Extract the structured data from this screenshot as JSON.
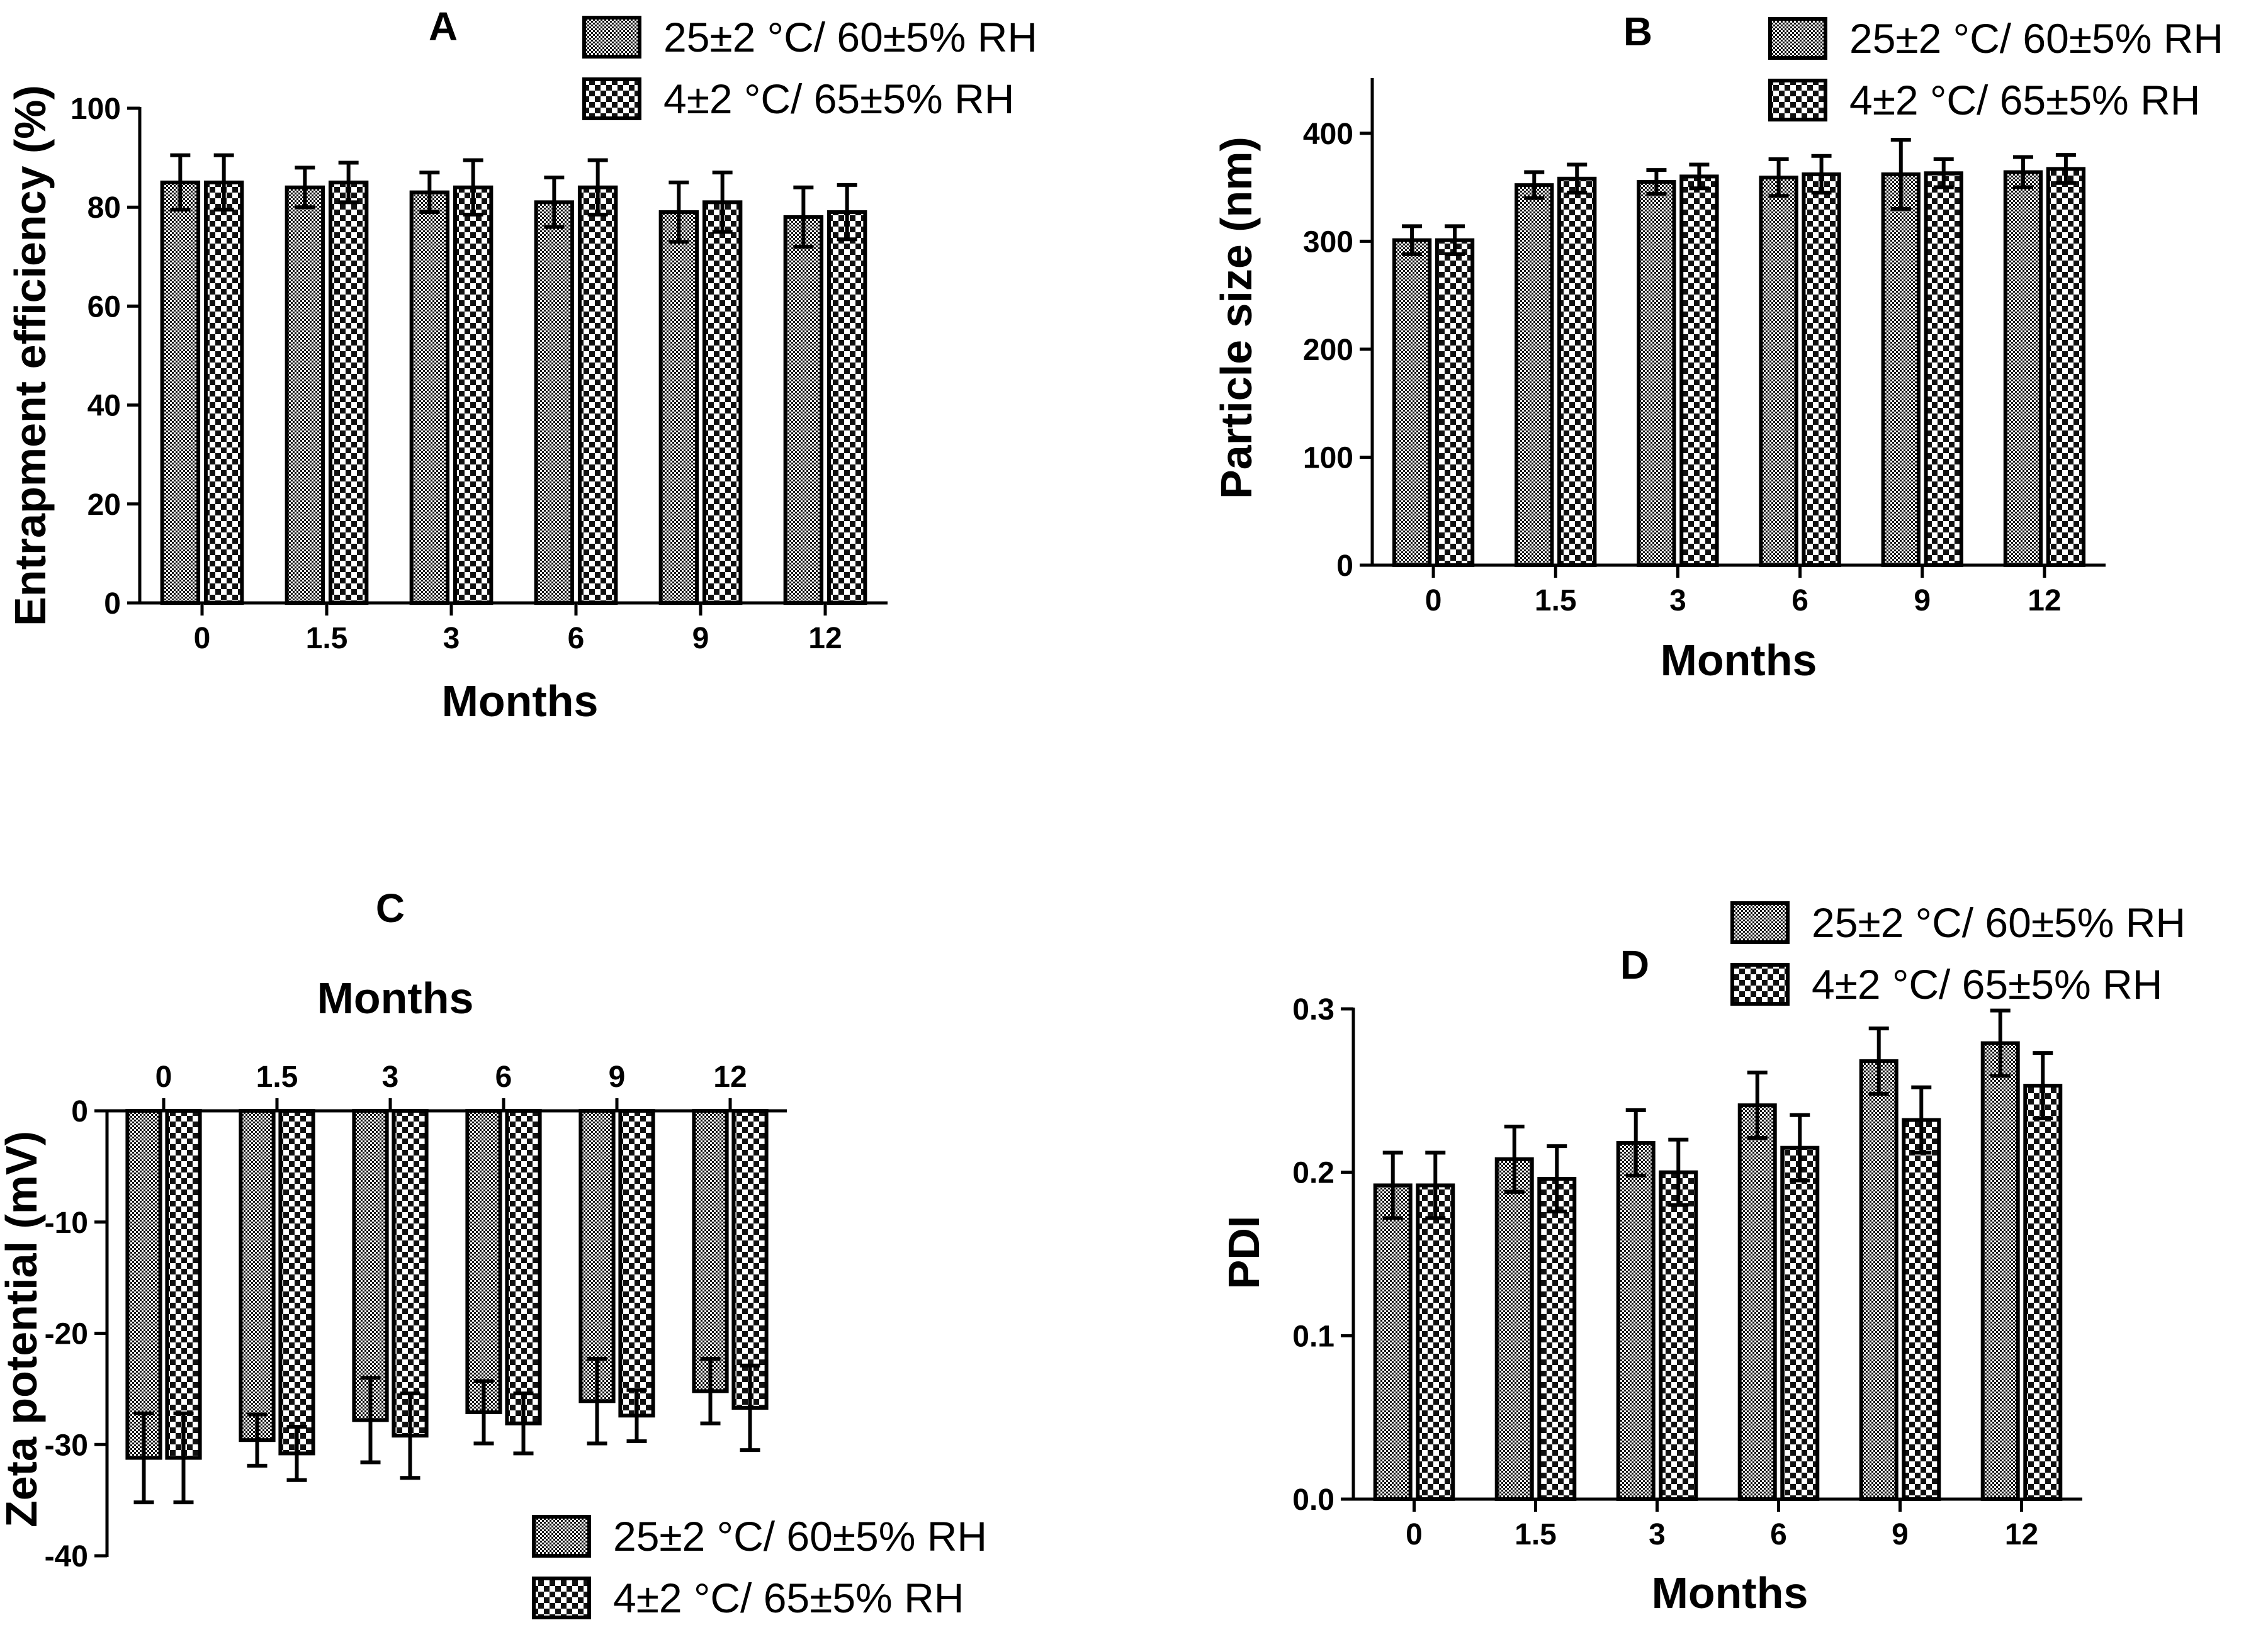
{
  "legend": {
    "series_a": "25±2 °C/ 60±5% RH",
    "series_b": "4±2 °C/ 65±5% RH"
  },
  "chart_data": [
    {
      "panel": "A",
      "type": "bar",
      "title": "A",
      "xlabel": "Months",
      "ylabel": "Entrapment efficiency (%)",
      "categories": [
        "0",
        "1.5",
        "3",
        "6",
        "9",
        "12"
      ],
      "ylim": [
        0,
        100
      ],
      "yticks": [
        0,
        20,
        40,
        60,
        80,
        100
      ],
      "series": [
        {
          "name": "25±2 °C/ 60±5% RH",
          "values": [
            85,
            84,
            83,
            81,
            79,
            78
          ],
          "errors": [
            5.5,
            4,
            4,
            5,
            6,
            6
          ]
        },
        {
          "name": "4±2 °C/ 65±5% RH",
          "values": [
            85,
            85,
            84,
            84,
            81,
            79
          ],
          "errors": [
            5.5,
            4,
            5.5,
            5.5,
            6,
            5.5
          ]
        }
      ],
      "legend_position": "top-right"
    },
    {
      "panel": "B",
      "type": "bar",
      "title": "B",
      "xlabel": "Months",
      "ylabel": "Particle size (nm)",
      "categories": [
        "0",
        "1.5",
        "3",
        "6",
        "9",
        "12"
      ],
      "ylim": [
        0,
        450
      ],
      "yticks": [
        0,
        100,
        200,
        300,
        400
      ],
      "series": [
        {
          "name": "25±2 °C/ 60±5% RH",
          "values": [
            301,
            352,
            355,
            359,
            362,
            364
          ],
          "errors": [
            13,
            12,
            11,
            17,
            32,
            14
          ]
        },
        {
          "name": "4±2 °C/ 65±5% RH",
          "values": [
            301,
            358,
            360,
            362,
            363,
            367
          ],
          "errors": [
            13,
            13,
            11,
            17,
            13,
            13
          ]
        }
      ],
      "legend_position": "top-right"
    },
    {
      "panel": "C",
      "type": "bar",
      "title": "C",
      "xlabel": "Months",
      "ylabel": "Zeta potential (mV)",
      "categories": [
        "0",
        "1.5",
        "3",
        "6",
        "9",
        "12"
      ],
      "ylim": [
        -40,
        0
      ],
      "yticks": [
        0,
        -10,
        -20,
        -30,
        -40
      ],
      "series": [
        {
          "name": "25±2 °C/ 60±5% RH",
          "values": [
            -31.2,
            -29.6,
            -27.8,
            -27.1,
            -26.1,
            -25.2
          ],
          "errors": [
            4,
            2.3,
            3.8,
            2.8,
            3.8,
            2.9
          ]
        },
        {
          "name": "4±2 °C/ 65±5% RH",
          "values": [
            -31.2,
            -30.8,
            -29.2,
            -28.1,
            -27.4,
            -26.7
          ],
          "errors": [
            4,
            2.4,
            3.8,
            2.7,
            2.3,
            3.8
          ]
        }
      ],
      "legend_position": "bottom-right"
    },
    {
      "panel": "D",
      "type": "bar",
      "title": "D",
      "xlabel": "Months",
      "ylabel": "PDI",
      "categories": [
        "0",
        "1.5",
        "3",
        "6",
        "9",
        "12"
      ],
      "ylim": [
        0,
        0.3
      ],
      "yticks": [
        0.0,
        0.1,
        0.2,
        0.3
      ],
      "series": [
        {
          "name": "25±2 °C/ 60±5% RH",
          "values": [
            0.192,
            0.208,
            0.218,
            0.241,
            0.268,
            0.279
          ],
          "errors": [
            0.02,
            0.02,
            0.02,
            0.02,
            0.02,
            0.02
          ]
        },
        {
          "name": "4±2 °C/ 65±5% RH",
          "values": [
            0.192,
            0.196,
            0.2,
            0.215,
            0.232,
            0.253
          ],
          "errors": [
            0.02,
            0.02,
            0.02,
            0.02,
            0.02,
            0.02
          ]
        }
      ],
      "legend_position": "top-right"
    }
  ]
}
